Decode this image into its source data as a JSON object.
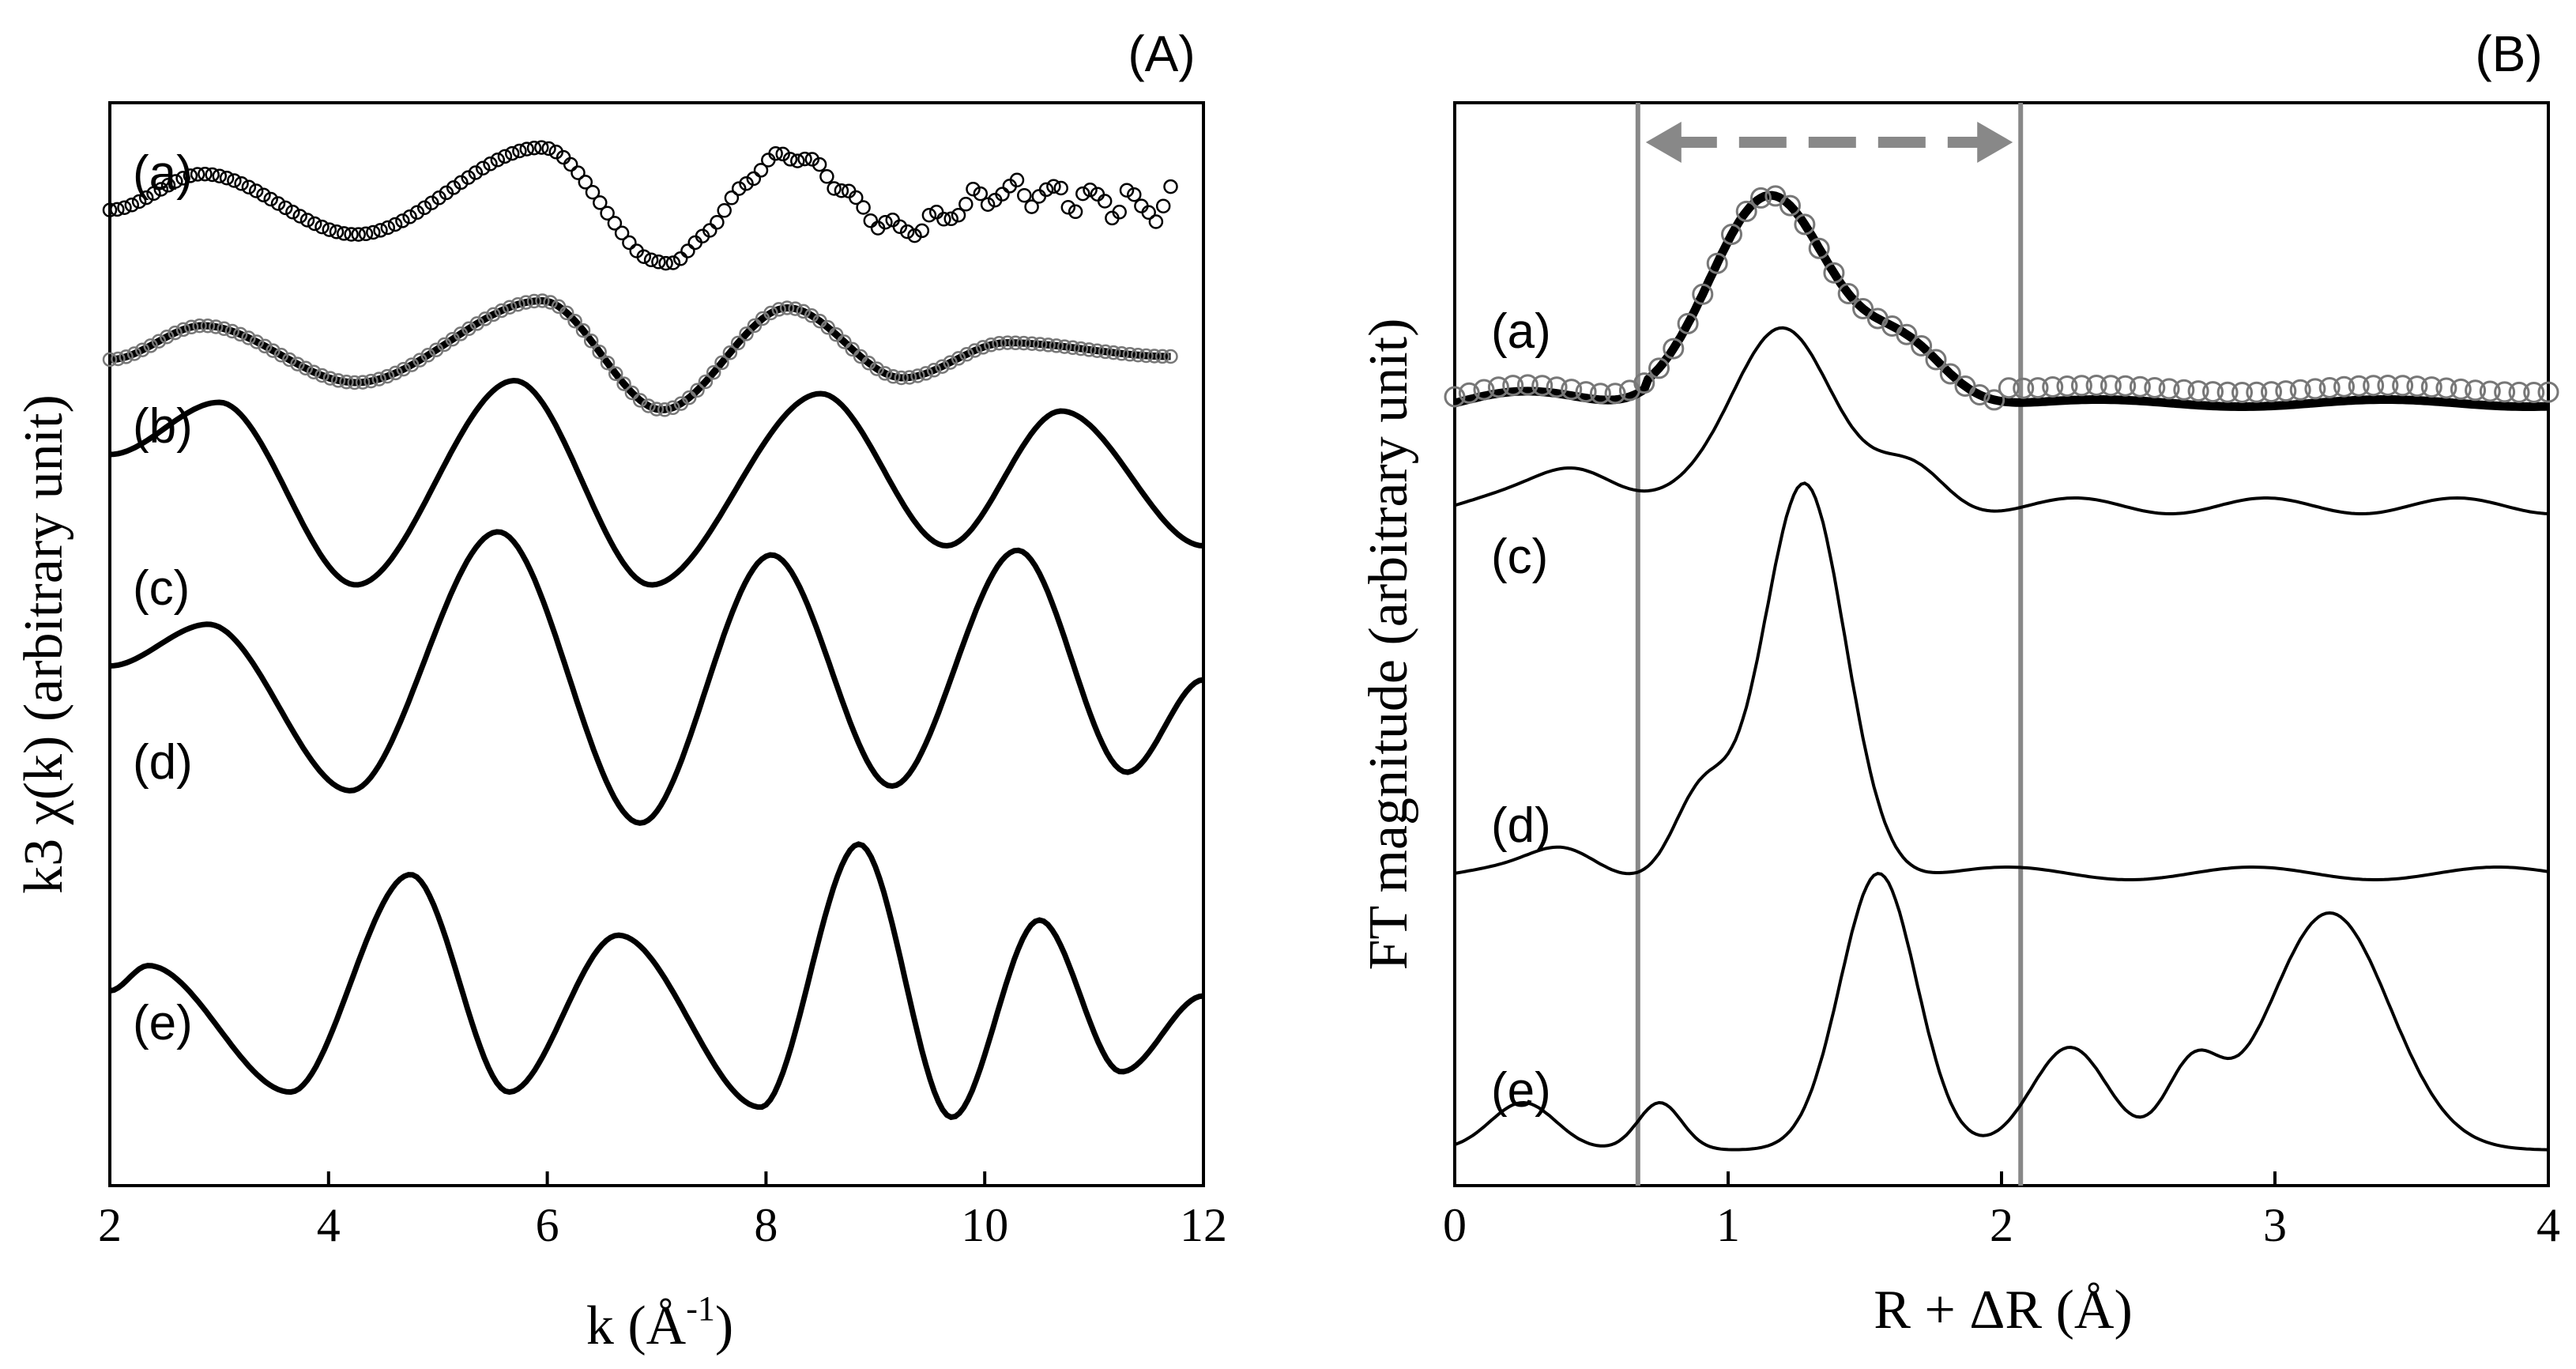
{
  "chart_data": [
    {
      "panel_label": "(A)",
      "type": "line",
      "xlabel_main": "k (Å",
      "xlabel_sup": "-1",
      "xlabel_close": ")",
      "ylabel": "k3 χ(k) (arbitrary unit)",
      "xlim": [
        2,
        12
      ],
      "xticks": [
        "2",
        "4",
        "6",
        "8",
        "10",
        "12"
      ],
      "series": [
        {
          "name": "(a)",
          "style": "open-circles-black",
          "x_range": [
            2.0,
            11.7
          ],
          "values": []
        },
        {
          "name": "(b)",
          "style": "line-with-open-circles-grey",
          "x_range": [
            2.0,
            11.7
          ],
          "values": []
        },
        {
          "name": "(c)",
          "style": "line",
          "x_range": [
            2.0,
            12.0
          ],
          "values": []
        },
        {
          "name": "(d)",
          "style": "line",
          "x_range": [
            2.0,
            12.0
          ],
          "values": []
        },
        {
          "name": "(e)",
          "style": "line",
          "x_range": [
            2.0,
            12.0
          ],
          "values": []
        }
      ]
    },
    {
      "panel_label": "(B)",
      "type": "line",
      "xlabel": "R + ΔR (Å)",
      "ylabel": "FT magnitude (arbitrary unit)",
      "xlim": [
        0,
        4
      ],
      "xticks": [
        "0",
        "1",
        "2",
        "3",
        "4"
      ],
      "fit_window": [
        0.67,
        2.07
      ],
      "series": [
        {
          "name": "(a)",
          "style": "thick-line-with-open-circles-grey",
          "x_range": [
            0,
            4
          ],
          "values": []
        },
        {
          "name": "(c)",
          "style": "line",
          "x_range": [
            0,
            4
          ],
          "values": []
        },
        {
          "name": "(d)",
          "style": "line",
          "x_range": [
            0,
            4
          ],
          "values": []
        },
        {
          "name": "(e)",
          "style": "line",
          "x_range": [
            0,
            4
          ],
          "values": []
        }
      ]
    }
  ]
}
